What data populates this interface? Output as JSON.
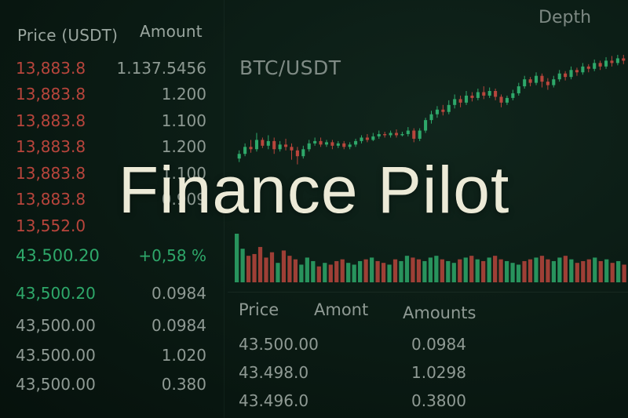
{
  "header": {
    "price_col": "Price (USDT)",
    "amount_col": "Amount",
    "depth_label": "Depth",
    "pair_label": "BTC/USDT"
  },
  "orderbook": {
    "asks": [
      {
        "price": "13,883.8",
        "amount": "1.137.5456"
      },
      {
        "price": "13,883.8",
        "amount": "1.200"
      },
      {
        "price": "13,883.8",
        "amount": "1.100"
      },
      {
        "price": "13,883.8",
        "amount": "1.200"
      },
      {
        "price": "13,883.8",
        "amount": "1.100"
      },
      {
        "price": "13,883.8",
        "amount": "0.909"
      },
      {
        "price": "13,552.0",
        "amount": ""
      }
    ],
    "mid": {
      "price": "43.500.20",
      "change": "+0,58 %"
    },
    "bids": [
      {
        "price": "43,500.20",
        "amount": "0.0984"
      },
      {
        "price": "43,500.00",
        "amount": "0.0984"
      },
      {
        "price": "43.500.00",
        "amount": "1.020"
      },
      {
        "price": "43,500.00",
        "amount": "0.380"
      }
    ]
  },
  "trades": {
    "headers": {
      "price": "Price",
      "amount": "Amont",
      "amounts": "Amounts"
    },
    "rows": [
      {
        "price": "43.500.00",
        "amount": "0.0984"
      },
      {
        "price": "43.498.0",
        "amount": "1.0298"
      },
      {
        "price": "43.496.0",
        "amount": "0.3800"
      }
    ]
  },
  "overlay_title": "Finance Pilot",
  "colors": {
    "up": "#2ea86a",
    "down": "#b8453c",
    "bg": "#0a1a13",
    "title": "#ecead7"
  },
  "chart_data": {
    "type": "candlestick",
    "title": "BTC/USDT",
    "candles": [
      {
        "o": 42,
        "c": 46,
        "h": 49,
        "l": 39
      },
      {
        "o": 46,
        "c": 52,
        "h": 55,
        "l": 44
      },
      {
        "o": 52,
        "c": 50,
        "h": 58,
        "l": 47
      },
      {
        "o": 50,
        "c": 58,
        "h": 64,
        "l": 48
      },
      {
        "o": 58,
        "c": 53,
        "h": 60,
        "l": 51
      },
      {
        "o": 53,
        "c": 57,
        "h": 62,
        "l": 50
      },
      {
        "o": 57,
        "c": 50,
        "h": 60,
        "l": 46
      },
      {
        "o": 50,
        "c": 54,
        "h": 57,
        "l": 48
      },
      {
        "o": 54,
        "c": 52,
        "h": 59,
        "l": 49
      },
      {
        "o": 52,
        "c": 49,
        "h": 55,
        "l": 41
      },
      {
        "o": 49,
        "c": 44,
        "h": 52,
        "l": 37
      },
      {
        "o": 44,
        "c": 50,
        "h": 53,
        "l": 42
      },
      {
        "o": 50,
        "c": 55,
        "h": 58,
        "l": 48
      },
      {
        "o": 55,
        "c": 57,
        "h": 60,
        "l": 53
      },
      {
        "o": 57,
        "c": 54,
        "h": 60,
        "l": 52
      },
      {
        "o": 54,
        "c": 56,
        "h": 58,
        "l": 52
      },
      {
        "o": 56,
        "c": 53,
        "h": 58,
        "l": 50
      },
      {
        "o": 53,
        "c": 55,
        "h": 57,
        "l": 51
      },
      {
        "o": 55,
        "c": 52,
        "h": 57,
        "l": 50
      },
      {
        "o": 52,
        "c": 54,
        "h": 56,
        "l": 50
      },
      {
        "o": 54,
        "c": 57,
        "h": 59,
        "l": 52
      },
      {
        "o": 57,
        "c": 60,
        "h": 62,
        "l": 55
      },
      {
        "o": 60,
        "c": 58,
        "h": 63,
        "l": 56
      },
      {
        "o": 58,
        "c": 61,
        "h": 64,
        "l": 57
      },
      {
        "o": 61,
        "c": 63,
        "h": 66,
        "l": 59
      },
      {
        "o": 63,
        "c": 62,
        "h": 65,
        "l": 60
      },
      {
        "o": 62,
        "c": 64,
        "h": 66,
        "l": 60
      },
      {
        "o": 64,
        "c": 62,
        "h": 67,
        "l": 60
      },
      {
        "o": 62,
        "c": 63,
        "h": 65,
        "l": 61
      },
      {
        "o": 63,
        "c": 66,
        "h": 69,
        "l": 61
      },
      {
        "o": 66,
        "c": 59,
        "h": 68,
        "l": 56
      },
      {
        "o": 59,
        "c": 66,
        "h": 68,
        "l": 57
      },
      {
        "o": 66,
        "c": 75,
        "h": 77,
        "l": 64
      },
      {
        "o": 75,
        "c": 80,
        "h": 83,
        "l": 72
      },
      {
        "o": 80,
        "c": 84,
        "h": 87,
        "l": 77
      },
      {
        "o": 84,
        "c": 82,
        "h": 88,
        "l": 79
      },
      {
        "o": 82,
        "c": 88,
        "h": 92,
        "l": 80
      },
      {
        "o": 88,
        "c": 93,
        "h": 97,
        "l": 85
      },
      {
        "o": 93,
        "c": 90,
        "h": 96,
        "l": 86
      },
      {
        "o": 90,
        "c": 96,
        "h": 100,
        "l": 88
      },
      {
        "o": 96,
        "c": 94,
        "h": 99,
        "l": 91
      },
      {
        "o": 94,
        "c": 99,
        "h": 102,
        "l": 92
      },
      {
        "o": 99,
        "c": 96,
        "h": 104,
        "l": 93
      },
      {
        "o": 96,
        "c": 100,
        "h": 103,
        "l": 94
      },
      {
        "o": 100,
        "c": 95,
        "h": 102,
        "l": 92
      },
      {
        "o": 95,
        "c": 90,
        "h": 97,
        "l": 86
      },
      {
        "o": 90,
        "c": 94,
        "h": 96,
        "l": 88
      },
      {
        "o": 94,
        "c": 98,
        "h": 101,
        "l": 92
      },
      {
        "o": 98,
        "c": 104,
        "h": 107,
        "l": 96
      },
      {
        "o": 104,
        "c": 110,
        "h": 113,
        "l": 102
      },
      {
        "o": 110,
        "c": 107,
        "h": 112,
        "l": 104
      },
      {
        "o": 107,
        "c": 113,
        "h": 116,
        "l": 105
      },
      {
        "o": 113,
        "c": 108,
        "h": 115,
        "l": 103
      },
      {
        "o": 108,
        "c": 105,
        "h": 111,
        "l": 101
      },
      {
        "o": 105,
        "c": 110,
        "h": 113,
        "l": 103
      },
      {
        "o": 110,
        "c": 115,
        "h": 118,
        "l": 108
      },
      {
        "o": 115,
        "c": 112,
        "h": 117,
        "l": 109
      },
      {
        "o": 112,
        "c": 118,
        "h": 121,
        "l": 110
      },
      {
        "o": 118,
        "c": 116,
        "h": 120,
        "l": 113
      },
      {
        "o": 116,
        "c": 121,
        "h": 124,
        "l": 114
      },
      {
        "o": 121,
        "c": 119,
        "h": 123,
        "l": 116
      },
      {
        "o": 119,
        "c": 124,
        "h": 127,
        "l": 117
      },
      {
        "o": 124,
        "c": 121,
        "h": 126,
        "l": 118
      },
      {
        "o": 121,
        "c": 126,
        "h": 129,
        "l": 119
      },
      {
        "o": 126,
        "c": 124,
        "h": 130,
        "l": 121
      },
      {
        "o": 124,
        "c": 128,
        "h": 131,
        "l": 122
      },
      {
        "o": 128,
        "c": 126,
        "h": 131,
        "l": 123
      }
    ],
    "volume": [
      55,
      38,
      30,
      32,
      40,
      28,
      34,
      22,
      36,
      30,
      26,
      20,
      28,
      24,
      18,
      22,
      20,
      24,
      26,
      22,
      20,
      24,
      26,
      28,
      24,
      22,
      20,
      26,
      24,
      30,
      28,
      26,
      24,
      28,
      30,
      26,
      24,
      22,
      26,
      28,
      30,
      26,
      24,
      28,
      30,
      26,
      24,
      22,
      20,
      24,
      26,
      28,
      30,
      26,
      24,
      28,
      30,
      26,
      22,
      24,
      26,
      28,
      24,
      26,
      22,
      24,
      20
    ],
    "ylim": [
      30,
      135
    ],
    "grid": false
  }
}
